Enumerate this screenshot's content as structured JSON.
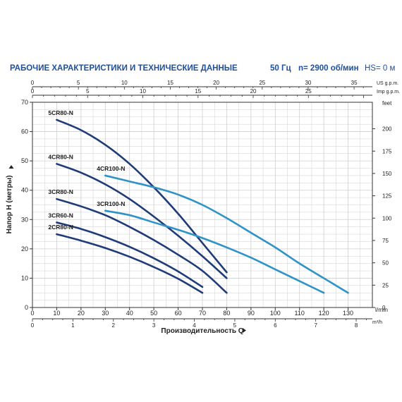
{
  "header": {
    "title": "РАБОЧИЕ ХАРАКТЕРИСТИКИ И ТЕХНИЧЕСКИЕ ДАННЫЕ",
    "frequency": "50 Гц",
    "speed": "n= 2900 об/мин",
    "hs": "HS= 0 м"
  },
  "colors": {
    "header": "#1f4f9a",
    "dark_curve": "#1f3c78",
    "light_curve": "#2e93c8",
    "grid": "#cfcfcf",
    "axis": "#333333"
  },
  "chart_data": {
    "type": "line",
    "xlabel": "Производительность Q",
    "ylabel": "Напор H (метры)",
    "x_unit": "l/min",
    "xlim": [
      0,
      140
    ],
    "ylim": [
      0,
      70
    ],
    "x_ticks": [
      0,
      10,
      20,
      30,
      40,
      50,
      60,
      70,
      80,
      90,
      100,
      110,
      120,
      130
    ],
    "y_ticks": [
      0,
      10,
      20,
      30,
      40,
      50,
      60,
      70
    ],
    "top_axis_us": {
      "unit": "US g.p.m.",
      "ticks": [
        0,
        5,
        10,
        15,
        20,
        25,
        30,
        35
      ]
    },
    "top_axis_imp": {
      "unit": "Imp g.p.m.",
      "ticks": [
        0,
        5,
        10,
        15,
        20,
        25
      ]
    },
    "bottom_axis_m3h": {
      "unit": "m³/h",
      "ticks": [
        0,
        1,
        2,
        3,
        4,
        5,
        6,
        7,
        8
      ]
    },
    "right_axis_feet": {
      "unit": "feet",
      "ticks": [
        0,
        25,
        50,
        75,
        100,
        125,
        150,
        175,
        200
      ]
    },
    "grid": true,
    "series": [
      {
        "name": "5CR80-N",
        "style": "dark",
        "x": [
          10,
          20,
          30,
          40,
          50,
          60,
          70,
          80
        ],
        "y": [
          64,
          60.5,
          55.5,
          49,
          41,
          32,
          22,
          12
        ]
      },
      {
        "name": "4CR80-N",
        "style": "dark",
        "x": [
          10,
          20,
          30,
          40,
          50,
          60,
          70,
          80
        ],
        "y": [
          49,
          46,
          42,
          37,
          31,
          24.5,
          17.5,
          10
        ]
      },
      {
        "name": "3CR80-N",
        "style": "dark",
        "x": [
          10,
          20,
          30,
          40,
          50,
          60,
          70,
          80
        ],
        "y": [
          37,
          34.5,
          31.5,
          27.5,
          23,
          18,
          12.5,
          5
        ]
      },
      {
        "name": "3CR60-N",
        "style": "dark",
        "x": [
          10,
          20,
          30,
          40,
          50,
          60,
          70
        ],
        "y": [
          29,
          26.8,
          24,
          20.7,
          16.8,
          12.3,
          7
        ]
      },
      {
        "name": "2CR80-N",
        "style": "dark",
        "x": [
          10,
          20,
          30,
          40,
          50,
          60,
          70
        ],
        "y": [
          25,
          22.8,
          20.3,
          17.3,
          13.8,
          9.8,
          5
        ]
      },
      {
        "name": "4CR100-N",
        "style": "light",
        "x": [
          30,
          40,
          50,
          60,
          70,
          80,
          90,
          100,
          110,
          120,
          130
        ],
        "y": [
          45,
          43,
          41,
          38.5,
          35,
          30.5,
          25.5,
          20.5,
          15,
          10,
          5
        ]
      },
      {
        "name": "3CR100-N",
        "style": "light",
        "x": [
          30,
          40,
          50,
          60,
          70,
          80,
          90,
          100,
          110,
          120
        ],
        "y": [
          33,
          31.5,
          29,
          26.5,
          23.7,
          20.5,
          17,
          13,
          9,
          5
        ]
      }
    ]
  }
}
